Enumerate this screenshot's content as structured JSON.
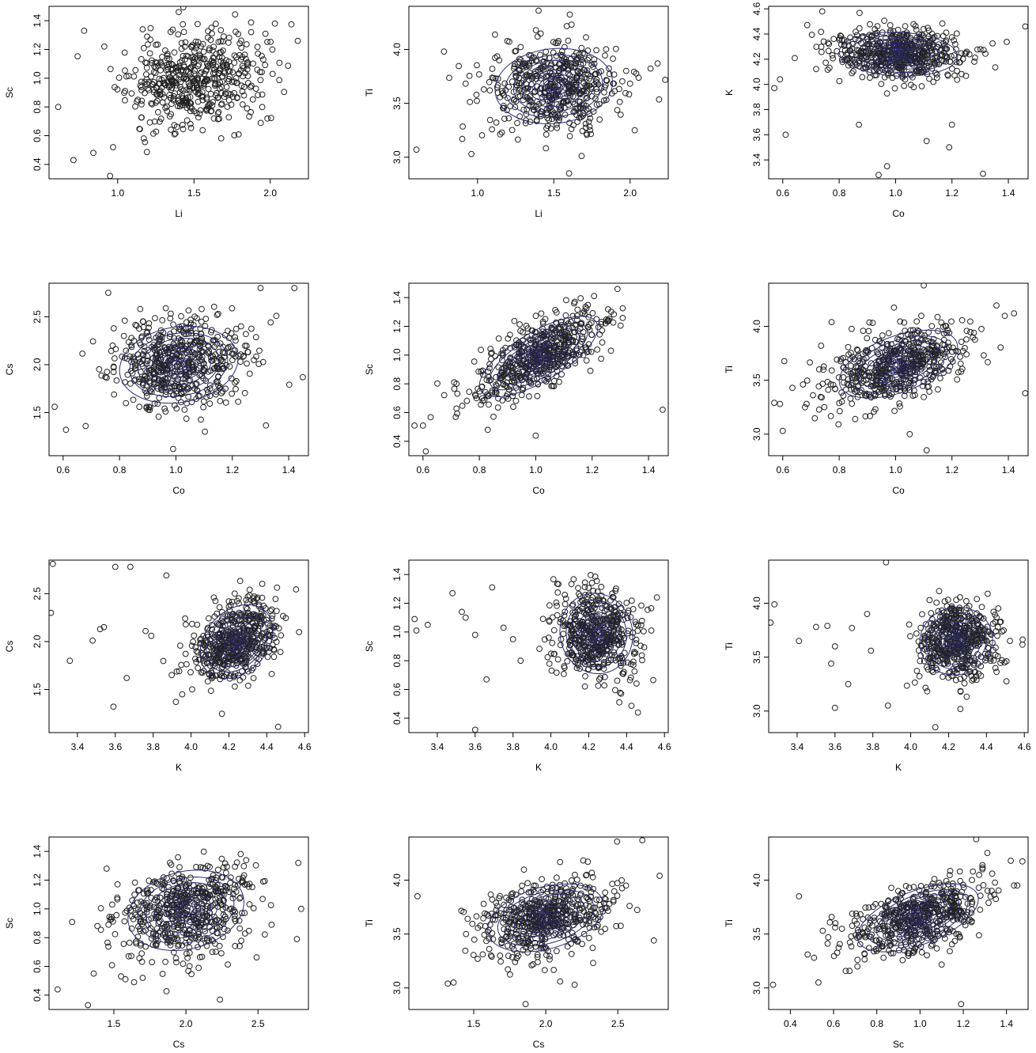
{
  "figure": {
    "point_color": "#222222",
    "contour_color": "#2b2b7a"
  },
  "chart_data": [
    {
      "type": "scatter",
      "xlabel": "Li",
      "ylabel": "Sc",
      "xlim": [
        0.55,
        2.25
      ],
      "ylim": [
        0.3,
        1.5
      ],
      "xticks": [
        "1.0",
        "1.5",
        "2.0"
      ],
      "yticks": [
        "0.4",
        "0.6",
        "0.8",
        "1.0",
        "1.2",
        "1.4"
      ],
      "center": [
        1.5,
        1.0
      ],
      "spread": [
        0.22,
        0.17
      ],
      "corr": 0.15,
      "n": 520,
      "seed": 11,
      "contours": false,
      "outliers": [
        [
          0.61,
          0.8
        ],
        [
          0.71,
          0.43
        ],
        [
          0.84,
          0.48
        ],
        [
          0.95,
          0.32
        ],
        [
          0.97,
          0.52
        ],
        [
          2.18,
          1.26
        ],
        [
          2.03,
          1.38
        ],
        [
          0.78,
          1.33
        ],
        [
          1.4,
          1.46
        ]
      ]
    },
    {
      "type": "scatter",
      "xlabel": "Li",
      "ylabel": "Ti",
      "xlim": [
        0.55,
        2.25
      ],
      "ylim": [
        2.8,
        4.4
      ],
      "xticks": [
        "1.0",
        "1.5",
        "2.0"
      ],
      "yticks": [
        "3.0",
        "3.5",
        "4.0"
      ],
      "center": [
        1.5,
        3.66
      ],
      "spread": [
        0.22,
        0.2
      ],
      "corr": 0.1,
      "n": 520,
      "seed": 22,
      "contours": true,
      "outliers": [
        [
          0.6,
          3.07
        ],
        [
          0.9,
          3.17
        ],
        [
          0.96,
          3.03
        ],
        [
          2.18,
          3.87
        ],
        [
          2.03,
          3.25
        ],
        [
          1.6,
          2.85
        ],
        [
          1.4,
          4.36
        ],
        [
          0.78,
          3.98
        ]
      ]
    },
    {
      "type": "scatter",
      "xlabel": "Co",
      "ylabel": "K",
      "xlim": [
        0.55,
        1.47
      ],
      "ylim": [
        3.25,
        4.62
      ],
      "xticks": [
        "0.6",
        "0.8",
        "1.0",
        "1.2",
        "1.4"
      ],
      "yticks": [
        "3.4",
        "3.6",
        "3.8",
        "4.0",
        "4.2",
        "4.4",
        "4.6"
      ],
      "center": [
        1.01,
        4.24
      ],
      "spread": [
        0.12,
        0.1
      ],
      "corr": -0.1,
      "n": 560,
      "seed": 33,
      "contours": true,
      "outliers": [
        [
          0.57,
          3.97
        ],
        [
          0.59,
          4.04
        ],
        [
          0.61,
          3.6
        ],
        [
          0.74,
          4.58
        ],
        [
          0.94,
          3.28
        ],
        [
          0.97,
          3.35
        ],
        [
          1.31,
          3.29
        ],
        [
          1.19,
          3.5
        ],
        [
          1.11,
          3.55
        ],
        [
          1.46,
          4.46
        ],
        [
          1.2,
          3.68
        ],
        [
          0.87,
          3.68
        ]
      ]
    },
    {
      "type": "scatter",
      "xlabel": "Co",
      "ylabel": "Cs",
      "xlim": [
        0.55,
        1.47
      ],
      "ylim": [
        1.05,
        2.85
      ],
      "xticks": [
        "0.6",
        "0.8",
        "1.0",
        "1.2",
        "1.4"
      ],
      "yticks": [
        "1.5",
        "2.0",
        "2.5"
      ],
      "center": [
        1.01,
        2.0
      ],
      "spread": [
        0.12,
        0.23
      ],
      "corr": 0.15,
      "n": 560,
      "seed": 44,
      "contours": true,
      "outliers": [
        [
          0.57,
          1.56
        ],
        [
          0.61,
          1.32
        ],
        [
          0.68,
          1.36
        ],
        [
          0.99,
          1.12
        ],
        [
          1.42,
          2.8
        ],
        [
          1.45,
          1.87
        ],
        [
          1.3,
          2.8
        ],
        [
          0.76,
          2.75
        ]
      ]
    },
    {
      "type": "scatter",
      "xlabel": "Co",
      "ylabel": "Sc",
      "xlim": [
        0.55,
        1.47
      ],
      "ylim": [
        0.3,
        1.5
      ],
      "xticks": [
        "0.6",
        "0.8",
        "1.0",
        "1.2",
        "1.4"
      ],
      "yticks": [
        "0.4",
        "0.6",
        "0.8",
        "1.0",
        "1.2",
        "1.4"
      ],
      "center": [
        1.01,
        0.99
      ],
      "spread": [
        0.12,
        0.16
      ],
      "corr": 0.72,
      "n": 560,
      "seed": 55,
      "contours": true,
      "outliers": [
        [
          0.57,
          0.51
        ],
        [
          0.6,
          0.51
        ],
        [
          0.61,
          0.33
        ],
        [
          1.45,
          0.62
        ],
        [
          1.0,
          0.44
        ],
        [
          0.83,
          0.48
        ],
        [
          1.29,
          1.46
        ]
      ]
    },
    {
      "type": "scatter",
      "xlabel": "Co",
      "ylabel": "Ti",
      "xlim": [
        0.55,
        1.47
      ],
      "ylim": [
        2.8,
        4.4
      ],
      "xticks": [
        "0.6",
        "0.8",
        "1.0",
        "1.2",
        "1.4"
      ],
      "yticks": [
        "3.0",
        "3.5",
        "4.0"
      ],
      "center": [
        1.01,
        3.65
      ],
      "spread": [
        0.12,
        0.18
      ],
      "corr": 0.5,
      "n": 560,
      "seed": 66,
      "contours": true,
      "outliers": [
        [
          0.57,
          3.29
        ],
        [
          0.6,
          3.03
        ],
        [
          0.59,
          3.28
        ],
        [
          1.11,
          2.85
        ],
        [
          1.1,
          4.38
        ],
        [
          1.46,
          3.38
        ],
        [
          1.05,
          3.0
        ],
        [
          1.42,
          4.12
        ]
      ]
    },
    {
      "type": "scatter",
      "xlabel": "K",
      "ylabel": "Cs",
      "xlim": [
        3.25,
        4.62
      ],
      "ylim": [
        1.05,
        2.85
      ],
      "xticks": [
        "3.4",
        "3.6",
        "3.8",
        "4.0",
        "4.2",
        "4.4",
        "4.6"
      ],
      "yticks": [
        "1.5",
        "2.0",
        "2.5"
      ],
      "center": [
        4.24,
        2.0
      ],
      "spread": [
        0.11,
        0.22
      ],
      "corr": 0.3,
      "n": 520,
      "seed": 77,
      "contours": true,
      "outliers": [
        [
          3.27,
          2.81
        ],
        [
          3.26,
          2.3
        ],
        [
          3.36,
          1.8
        ],
        [
          3.48,
          2.01
        ],
        [
          3.54,
          2.15
        ],
        [
          3.52,
          2.13
        ],
        [
          3.6,
          2.78
        ],
        [
          3.68,
          2.78
        ],
        [
          3.59,
          1.32
        ],
        [
          3.66,
          1.62
        ],
        [
          3.76,
          2.11
        ],
        [
          3.79,
          2.06
        ],
        [
          3.87,
          2.69
        ],
        [
          4.46,
          1.11
        ],
        [
          3.92,
          1.37
        ]
      ]
    },
    {
      "type": "scatter",
      "xlabel": "K",
      "ylabel": "Sc",
      "xlim": [
        3.25,
        4.62
      ],
      "ylim": [
        0.3,
        1.5
      ],
      "xticks": [
        "3.4",
        "3.6",
        "3.8",
        "4.0",
        "4.2",
        "4.4",
        "4.6"
      ],
      "yticks": [
        "0.4",
        "0.6",
        "0.8",
        "1.0",
        "1.2",
        "1.4"
      ],
      "center": [
        4.24,
        0.99
      ],
      "spread": [
        0.11,
        0.16
      ],
      "corr": -0.05,
      "n": 520,
      "seed": 88,
      "contours": true,
      "outliers": [
        [
          3.28,
          1.09
        ],
        [
          3.29,
          1.01
        ],
        [
          3.35,
          1.05
        ],
        [
          3.48,
          1.27
        ],
        [
          3.53,
          1.14
        ],
        [
          3.55,
          1.1
        ],
        [
          3.6,
          0.98
        ],
        [
          3.6,
          0.32
        ],
        [
          3.66,
          0.67
        ],
        [
          3.69,
          1.31
        ],
        [
          3.75,
          1.03
        ],
        [
          3.8,
          0.95
        ],
        [
          3.84,
          0.8
        ],
        [
          4.46,
          0.44
        ],
        [
          4.56,
          1.24
        ]
      ]
    },
    {
      "type": "scatter",
      "xlabel": "K",
      "ylabel": "Ti",
      "xlim": [
        3.25,
        4.62
      ],
      "ylim": [
        2.8,
        4.4
      ],
      "xticks": [
        "3.4",
        "3.6",
        "3.8",
        "4.0",
        "4.2",
        "4.4",
        "4.6"
      ],
      "yticks": [
        "3.0",
        "3.5",
        "4.0"
      ],
      "center": [
        4.24,
        3.65
      ],
      "spread": [
        0.11,
        0.18
      ],
      "corr": 0.05,
      "n": 520,
      "seed": 99,
      "contours": true,
      "outliers": [
        [
          3.26,
          3.82
        ],
        [
          3.28,
          3.99
        ],
        [
          3.41,
          3.65
        ],
        [
          3.5,
          3.78
        ],
        [
          3.56,
          3.79
        ],
        [
          3.58,
          3.44
        ],
        [
          3.6,
          3.03
        ],
        [
          3.6,
          3.6
        ],
        [
          3.67,
          3.25
        ],
        [
          3.69,
          3.77
        ],
        [
          3.77,
          3.9
        ],
        [
          3.79,
          3.56
        ],
        [
          3.87,
          4.38
        ],
        [
          4.13,
          2.85
        ],
        [
          3.88,
          3.05
        ]
      ]
    },
    {
      "type": "scatter",
      "xlabel": "Cs",
      "ylabel": "Sc",
      "xlim": [
        1.05,
        2.85
      ],
      "ylim": [
        0.3,
        1.5
      ],
      "xticks": [
        "1.5",
        "2.0",
        "2.5"
      ],
      "yticks": [
        "0.4",
        "0.6",
        "0.8",
        "1.0",
        "1.2",
        "1.4"
      ],
      "center": [
        2.0,
        0.99
      ],
      "spread": [
        0.23,
        0.16
      ],
      "corr": 0.2,
      "n": 560,
      "seed": 111,
      "contours": true,
      "outliers": [
        [
          1.11,
          0.44
        ],
        [
          1.32,
          0.33
        ],
        [
          1.36,
          0.55
        ],
        [
          1.55,
          0.53
        ],
        [
          1.58,
          0.51
        ],
        [
          1.64,
          0.49
        ],
        [
          1.7,
          0.52
        ],
        [
          2.77,
          0.79
        ],
        [
          2.8,
          1.0
        ],
        [
          2.78,
          1.32
        ]
      ]
    },
    {
      "type": "scatter",
      "xlabel": "Cs",
      "ylabel": "Ti",
      "xlim": [
        1.05,
        2.85
      ],
      "ylim": [
        2.8,
        4.4
      ],
      "xticks": [
        "1.5",
        "2.0",
        "2.5"
      ],
      "yticks": [
        "3.0",
        "3.5",
        "4.0"
      ],
      "center": [
        2.0,
        3.65
      ],
      "spread": [
        0.23,
        0.18
      ],
      "corr": 0.35,
      "n": 560,
      "seed": 122,
      "contours": true,
      "outliers": [
        [
          1.11,
          3.85
        ],
        [
          1.32,
          3.04
        ],
        [
          1.36,
          3.05
        ],
        [
          1.86,
          2.85
        ],
        [
          2.1,
          3.06
        ],
        [
          2.2,
          3.03
        ],
        [
          2.67,
          4.37
        ],
        [
          2.79,
          4.04
        ],
        [
          2.75,
          3.44
        ]
      ]
    },
    {
      "type": "scatter",
      "xlabel": "Sc",
      "ylabel": "Ti",
      "xlim": [
        0.3,
        1.5
      ],
      "ylim": [
        2.8,
        4.4
      ],
      "xticks": [
        "0.4",
        "0.6",
        "0.8",
        "1.0",
        "1.2",
        "1.4"
      ],
      "yticks": [
        "3.0",
        "3.5",
        "4.0"
      ],
      "center": [
        0.99,
        3.65
      ],
      "spread": [
        0.16,
        0.18
      ],
      "corr": 0.55,
      "n": 560,
      "seed": 133,
      "contours": true,
      "outliers": [
        [
          0.32,
          3.03
        ],
        [
          0.44,
          3.85
        ],
        [
          0.48,
          3.31
        ],
        [
          0.51,
          3.28
        ],
        [
          0.53,
          3.05
        ],
        [
          0.55,
          3.53
        ],
        [
          1.19,
          2.85
        ],
        [
          1.26,
          4.38
        ],
        [
          1.45,
          3.95
        ],
        [
          1.42,
          4.18
        ]
      ]
    }
  ]
}
